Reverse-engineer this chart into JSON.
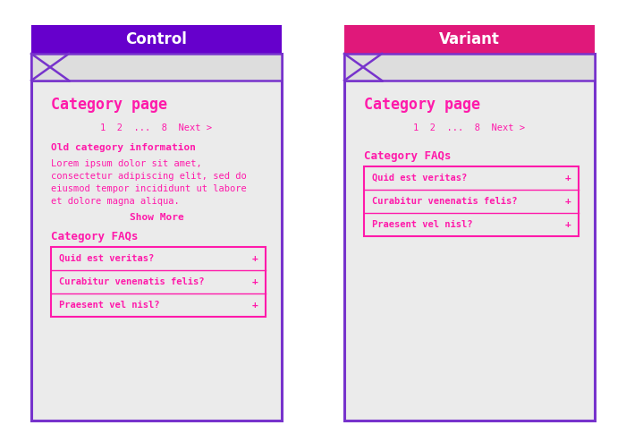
{
  "bg_color": "#ffffff",
  "panel_bg": "#ebebeb",
  "nav_bg": "#dddddd",
  "border_color": "#7733cc",
  "pink": "#ff1aaa",
  "purple_header": "#6600cc",
  "pink_header": "#e0187a",
  "white": "#ffffff",
  "control_label": "Control",
  "variant_label": "Variant",
  "page_title": "Category page",
  "pagination": "1  2  ...  8  Next >",
  "old_cat_heading": "Old category information",
  "lorem_line1": "Lorem ipsum dolor sit amet,",
  "lorem_line2": "consectetur adipiscing elit, sed do",
  "lorem_line3": "eiusmod tempor incididunt ut labore",
  "lorem_line4": "et dolore magna aliqua.",
  "show_more": "Show More",
  "faqs_heading": "Category FAQs",
  "faq_items": [
    "Quid est veritas?",
    "Curabitur venenatis felis?",
    "Praesent vel nisl?"
  ],
  "figw": 7.0,
  "figh": 4.94,
  "dpi": 100
}
